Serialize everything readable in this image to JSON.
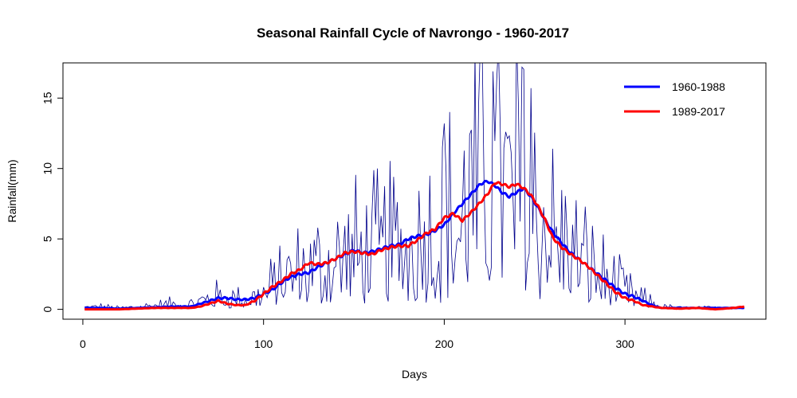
{
  "chart_data": {
    "type": "line",
    "title": "Seasonal Rainfall Cycle of Navrongo - 1960-2017",
    "xlabel": "Days",
    "ylabel": "Rainfall(mm)",
    "xlim": [
      -11,
      378
    ],
    "ylim": [
      -0.7,
      17.5
    ],
    "x_ticks": [
      0,
      100,
      200,
      300
    ],
    "y_ticks": [
      0,
      5,
      10,
      15
    ],
    "grid": false,
    "legend_position": "top-right",
    "colors": {
      "daily": "#00008B",
      "1960-1988": "#0000FF",
      "1989-2017": "#FF0000"
    },
    "series": [
      {
        "name": "1960-1988",
        "color": "#0000FF",
        "smooth": true,
        "x": [
          1,
          10,
          20,
          30,
          40,
          50,
          60,
          65,
          70,
          75,
          80,
          85,
          90,
          95,
          100,
          105,
          110,
          115,
          120,
          125,
          130,
          135,
          140,
          145,
          150,
          155,
          160,
          165,
          170,
          175,
          180,
          185,
          190,
          195,
          200,
          205,
          210,
          215,
          220,
          224,
          228,
          232,
          236,
          240,
          244,
          248,
          252,
          256,
          260,
          265,
          270,
          275,
          280,
          285,
          290,
          295,
          300,
          305,
          310,
          315,
          320,
          330,
          340,
          350,
          360,
          366
        ],
        "y": [
          0.1,
          0.1,
          0.05,
          0.1,
          0.15,
          0.2,
          0.2,
          0.4,
          0.6,
          0.8,
          0.8,
          0.7,
          0.7,
          0.8,
          1.1,
          1.4,
          1.9,
          2.3,
          2.5,
          2.6,
          3.0,
          3.3,
          3.6,
          3.9,
          4.2,
          4.0,
          4.1,
          4.3,
          4.5,
          4.6,
          5.0,
          5.2,
          5.3,
          5.6,
          6.0,
          6.8,
          7.5,
          8.2,
          8.9,
          9.1,
          8.8,
          8.3,
          8.0,
          8.3,
          8.6,
          8.0,
          7.2,
          6.3,
          5.5,
          4.7,
          4.0,
          3.5,
          3.0,
          2.5,
          2.0,
          1.5,
          1.1,
          0.9,
          0.6,
          0.3,
          0.1,
          0.1,
          0.1,
          0.1,
          0.1,
          0.1
        ]
      },
      {
        "name": "1989-2017",
        "color": "#FF0000",
        "smooth": true,
        "x": [
          1,
          10,
          20,
          30,
          40,
          50,
          60,
          65,
          70,
          75,
          80,
          85,
          90,
          95,
          100,
          105,
          110,
          115,
          120,
          125,
          130,
          135,
          140,
          145,
          150,
          155,
          160,
          165,
          170,
          175,
          180,
          185,
          190,
          195,
          200,
          205,
          210,
          215,
          220,
          224,
          228,
          232,
          236,
          240,
          244,
          248,
          252,
          256,
          260,
          265,
          270,
          275,
          280,
          285,
          290,
          295,
          300,
          305,
          310,
          315,
          320,
          330,
          340,
          350,
          360,
          366
        ],
        "y": [
          0.0,
          0.0,
          0.0,
          0.05,
          0.1,
          0.1,
          0.1,
          0.2,
          0.4,
          0.6,
          0.4,
          0.3,
          0.3,
          0.6,
          1.1,
          1.6,
          2.0,
          2.5,
          2.8,
          3.3,
          3.2,
          3.3,
          3.6,
          4.0,
          4.1,
          4.0,
          3.9,
          4.2,
          4.4,
          4.5,
          4.5,
          4.9,
          5.4,
          5.7,
          6.5,
          6.8,
          6.3,
          6.9,
          7.6,
          8.2,
          9.0,
          8.9,
          8.7,
          8.9,
          8.6,
          8.1,
          7.3,
          6.3,
          5.1,
          4.4,
          3.9,
          3.5,
          3.0,
          2.4,
          1.8,
          1.2,
          0.8,
          0.6,
          0.3,
          0.2,
          0.1,
          0.05,
          0.1,
          0.0,
          0.1,
          0.2
        ]
      },
      {
        "name": "",
        "color": "#00008B",
        "daily": true,
        "x_start": 1,
        "x_end": 366,
        "envelope_x": [
          1,
          10,
          20,
          30,
          40,
          50,
          60,
          70,
          80,
          90,
          100,
          110,
          120,
          130,
          140,
          150,
          160,
          170,
          180,
          190,
          200,
          210,
          220,
          230,
          240,
          250,
          260,
          270,
          280,
          290,
          300,
          310,
          320,
          330,
          340,
          350,
          360,
          366
        ],
        "envelope_y": [
          0.15,
          0.2,
          0.1,
          0.2,
          0.3,
          0.4,
          0.4,
          0.9,
          0.9,
          0.7,
          1.2,
          2.2,
          2.8,
          3.2,
          3.8,
          4.1,
          4.1,
          4.5,
          4.8,
          5.3,
          6.3,
          7.0,
          8.7,
          8.6,
          8.7,
          7.8,
          5.8,
          4.2,
          3.3,
          2.2,
          1.3,
          0.7,
          0.2,
          0.1,
          0.1,
          0.1,
          0.1,
          0.2
        ]
      }
    ],
    "annotations": [
      {
        "x": 227,
        "y": 16.9
      },
      {
        "x": 243,
        "y": 17.2
      },
      {
        "x": 248,
        "y": 15.7
      },
      {
        "x": 200,
        "y": 13.2
      },
      {
        "x": 231,
        "y": 12.8
      },
      {
        "x": 214,
        "y": 12.4
      }
    ]
  }
}
